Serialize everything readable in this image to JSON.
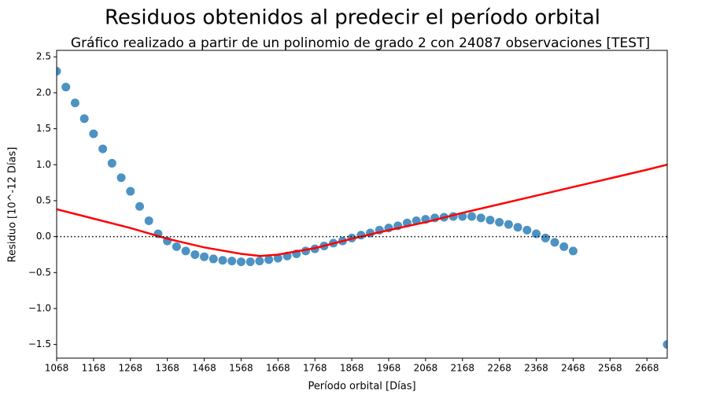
{
  "chart_data": {
    "type": "scatter",
    "title": "Residuos obtenidos al predecir el período orbital",
    "subtitle": "Gráfico realizado a partir de un polinomio de grado 2 con 24087 observaciones [TEST]",
    "x_label": "Período orbital [Días]",
    "y_label": "Residuo [10^-12 Días]",
    "xlim": [
      1068,
      2723
    ],
    "ylim": [
      -1.69,
      2.59
    ],
    "xticks": [
      1068,
      1168,
      1268,
      1368,
      1468,
      1568,
      1668,
      1768,
      1868,
      1968,
      2068,
      2168,
      2268,
      2368,
      2468,
      2568,
      2668
    ],
    "yticks": [
      {
        "value": -1.5,
        "label": "−1.5"
      },
      {
        "value": -1.0,
        "label": "−1.0"
      },
      {
        "value": -0.5,
        "label": "−0.5"
      },
      {
        "value": 0,
        "label": "0.0"
      },
      0.5,
      {
        "value": 1.0,
        "label": "1.0"
      },
      1.5,
      {
        "value": 2.0,
        "label": "2.0"
      },
      2.5
    ],
    "reference_line": 0,
    "points": {
      "color": "#1f77b4",
      "x": [
        1068,
        1093,
        1118,
        1143,
        1168,
        1193,
        1218,
        1243,
        1268,
        1293,
        1318,
        1343,
        1368,
        1393,
        1418,
        1443,
        1468,
        1493,
        1518,
        1543,
        1568,
        1593,
        1618,
        1643,
        1668,
        1693,
        1718,
        1743,
        1768,
        1793,
        1818,
        1843,
        1868,
        1893,
        1918,
        1943,
        1968,
        1993,
        2018,
        2043,
        2068,
        2093,
        2118,
        2143,
        2168,
        2193,
        2218,
        2243,
        2268,
        2293,
        2318,
        2343,
        2368,
        2393,
        2418,
        2443,
        2468,
        2723
      ],
      "values": [
        2.3,
        2.08,
        1.86,
        1.64,
        1.43,
        1.22,
        1.02,
        0.82,
        0.63,
        0.42,
        0.22,
        0.04,
        -0.06,
        -0.14,
        -0.2,
        -0.25,
        -0.28,
        -0.31,
        -0.33,
        -0.34,
        -0.35,
        -0.35,
        -0.34,
        -0.32,
        -0.3,
        -0.27,
        -0.24,
        -0.2,
        -0.17,
        -0.13,
        -0.09,
        -0.06,
        -0.02,
        0.02,
        0.05,
        0.09,
        0.12,
        0.15,
        0.19,
        0.22,
        0.24,
        0.26,
        0.27,
        0.28,
        0.28,
        0.28,
        0.26,
        0.23,
        0.2,
        0.17,
        0.13,
        0.09,
        0.04,
        -0.02,
        -0.08,
        -0.14,
        -0.2,
        -1.5
      ]
    },
    "fit_line": {
      "color": "#ff0000",
      "x": [
        1068,
        1168,
        1268,
        1368,
        1468,
        1568,
        1620,
        1668,
        1768,
        1868,
        1968,
        2068,
        2168,
        2268,
        2368,
        2468,
        2568,
        2668,
        2723
      ],
      "values": [
        0.38,
        0.25,
        0.12,
        -0.03,
        -0.15,
        -0.24,
        -0.27,
        -0.25,
        -0.16,
        -0.03,
        0.09,
        0.2,
        0.33,
        0.45,
        0.57,
        0.69,
        0.81,
        0.93,
        1.0
      ]
    }
  }
}
